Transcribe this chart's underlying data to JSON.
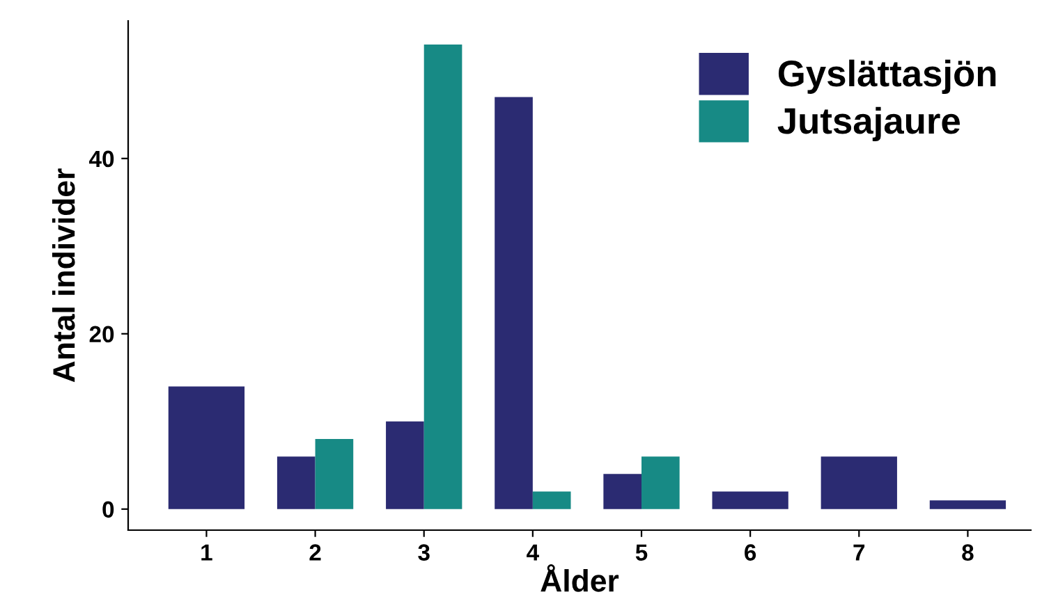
{
  "chart_data": {
    "type": "bar",
    "xlabel": "Ålder",
    "ylabel": "Antal individer",
    "categories": [
      "1",
      "2",
      "3",
      "4",
      "5",
      "6",
      "7",
      "8"
    ],
    "series": [
      {
        "name": "Gyslättasjön",
        "color": "#2b2b72",
        "values": [
          14,
          6,
          10,
          47,
          4,
          2,
          6,
          1
        ]
      },
      {
        "name": "Jutsajaure",
        "color": "#178a85",
        "values": [
          null,
          8,
          53,
          2,
          6,
          null,
          null,
          null
        ]
      }
    ],
    "ylim": [
      -2.4,
      55.7
    ],
    "yticks": [
      0,
      20,
      40
    ],
    "grid": false,
    "legend": "top right"
  }
}
